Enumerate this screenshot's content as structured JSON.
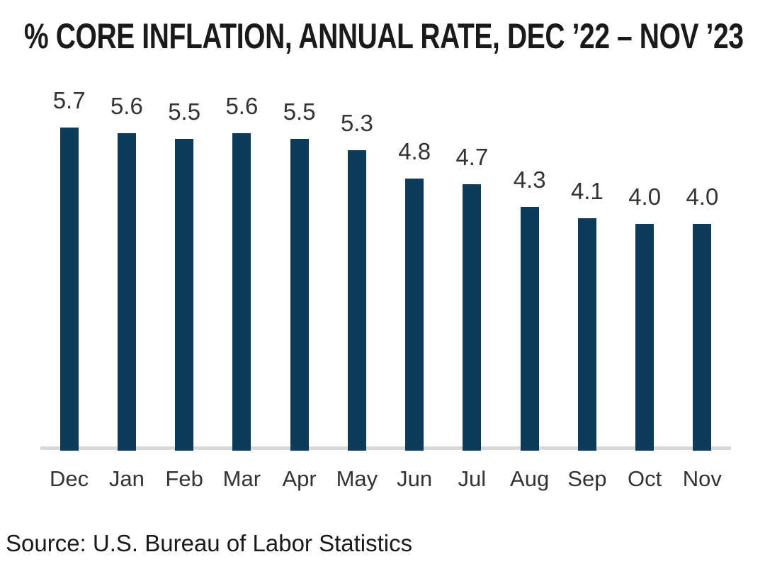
{
  "title": "% CORE INFLATION, ANNUAL RATE, DEC ’22 – NOV ’23",
  "source": "Source: U.S. Bureau of Labor Statistics",
  "colors": {
    "bar": "#0d3b5a",
    "axis_line": "#d9d9d9",
    "data_label": "#333333",
    "title_text": "#1a1a1a"
  },
  "chart_data": {
    "type": "bar",
    "title": "% CORE INFLATION, ANNUAL RATE, DEC ’22 – NOV ’23",
    "categories": [
      "Dec",
      "Jan",
      "Feb",
      "Mar",
      "Apr",
      "May",
      "Jun",
      "Jul",
      "Aug",
      "Sep",
      "Oct",
      "Nov"
    ],
    "values": [
      5.7,
      5.6,
      5.5,
      5.6,
      5.5,
      5.3,
      4.8,
      4.7,
      4.3,
      4.1,
      4.0,
      4.0
    ],
    "data_labels": [
      "5.7",
      "5.6",
      "5.5",
      "5.6",
      "5.5",
      "5.3",
      "4.8",
      "4.7",
      "4.3",
      "4.1",
      "4.0",
      "4.0"
    ],
    "xlabel": "",
    "ylabel": "",
    "ylim": [
      0,
      6
    ],
    "grid": false,
    "legend": "none",
    "bar_color": "#0d3b5a",
    "annotation": "Source: U.S. Bureau of Labor Statistics"
  }
}
